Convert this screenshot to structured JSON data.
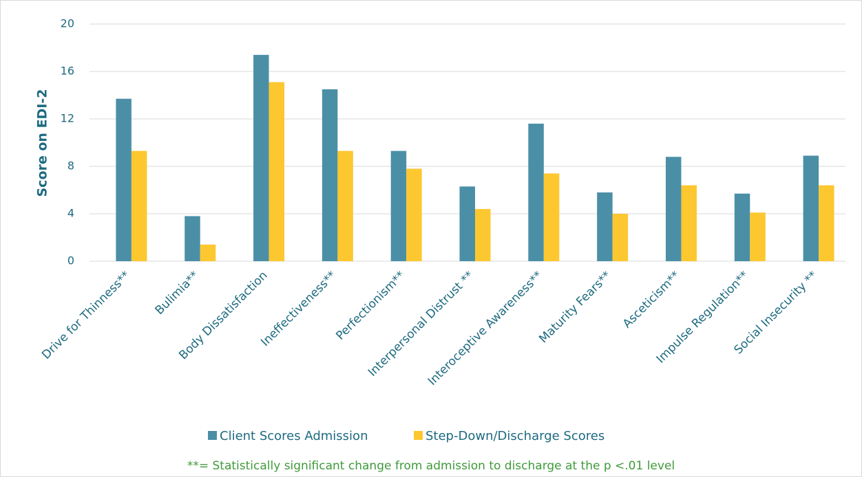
{
  "chart_data": {
    "type": "bar",
    "y_axis_label": "Score on EDI-2",
    "categories": [
      "Drive for Thinness**",
      "Bulimia**",
      "Body Dissatisfaction",
      "Ineffectiveness**",
      "Perfectionism**",
      "Interpersonal Distrust **",
      "Interoceptive Awareness**",
      "Maturity Fears**",
      "Asceticism**",
      "Impulse Regulation**",
      "Social Insecurity **"
    ],
    "series": [
      {
        "name": "Client Scores Admission",
        "color": "#4b8fa7",
        "values": [
          13.7,
          3.8,
          17.4,
          14.5,
          9.3,
          6.3,
          11.6,
          5.8,
          8.8,
          5.7,
          8.9
        ]
      },
      {
        "name": "Step-Down/Discharge Scores",
        "color": "#fdc72f",
        "values": [
          9.3,
          1.4,
          15.1,
          9.3,
          7.8,
          4.4,
          7.4,
          4.0,
          6.4,
          4.1,
          6.4
        ]
      }
    ],
    "ylim": [
      0,
      20
    ],
    "yticks": [
      0,
      4,
      8,
      12,
      16,
      20
    ],
    "grid": true,
    "legend": "bottom",
    "annotation": "**= Statistically significant change from admission to discharge at the p <.01 level"
  }
}
